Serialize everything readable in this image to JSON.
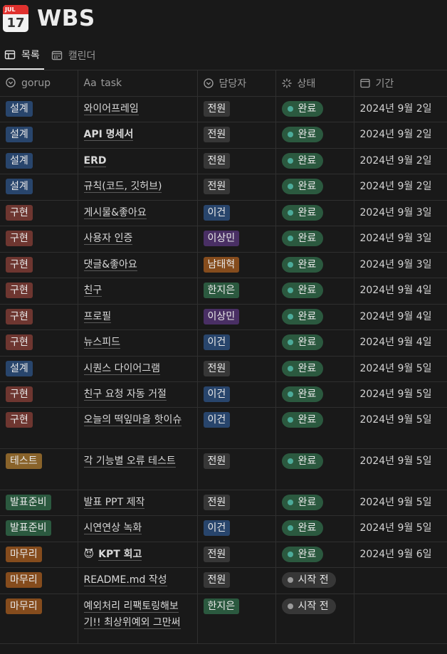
{
  "page": {
    "icon_month": "JUL",
    "icon_day": "17",
    "title": "WBS"
  },
  "tabs": [
    {
      "label": "목록",
      "icon": "table-icon",
      "active": true
    },
    {
      "label": "캘린더",
      "icon": "calendar-icon",
      "active": false
    }
  ],
  "columns": [
    {
      "label": "gorup",
      "icon": "select-icon"
    },
    {
      "label": "task",
      "icon": "text-aa-icon",
      "prefix": "Aa"
    },
    {
      "label": "담당자",
      "icon": "select-icon"
    },
    {
      "label": "상태",
      "icon": "status-spinner-icon"
    },
    {
      "label": "기간",
      "icon": "calendar-icon"
    }
  ],
  "colors": {
    "설계": "#28456c",
    "구현": "#6e3630",
    "테스트": "#89632a",
    "발표준비": "#2b593f",
    "마무리": "#854c1d",
    "전원": "#373737",
    "이건": "#28456c",
    "이상민": "#492f64",
    "남태혁": "#854c1d",
    "한지은": "#2b593f",
    "완료_bg": "#2b593f",
    "완료_dot": "#4dab9a",
    "시작전_bg": "#373737",
    "시작전_dot": "#9b9b9b"
  },
  "rows": [
    {
      "group": "설계",
      "task": "와이어프레임",
      "assignee": "전원",
      "status": "완료",
      "date": "2024년 9월 2일"
    },
    {
      "group": "설계",
      "task": "API 명세서",
      "assignee": "전원",
      "status": "완료",
      "date": "2024년 9월 2일",
      "bold": true
    },
    {
      "group": "설계",
      "task": "ERD",
      "assignee": "전원",
      "status": "완료",
      "date": "2024년 9월 2일",
      "bold": true
    },
    {
      "group": "설계",
      "task": "규칙(코드, 깃허브)",
      "assignee": "전원",
      "status": "완료",
      "date": "2024년 9월 2일"
    },
    {
      "group": "구현",
      "task": "게시물&좋아요",
      "assignee": "이건",
      "status": "완료",
      "date": "2024년 9월 3일"
    },
    {
      "group": "구현",
      "task": "사용자 인증",
      "assignee": "이상민",
      "status": "완료",
      "date": "2024년 9월 3일"
    },
    {
      "group": "구현",
      "task": "댓글&좋아요",
      "assignee": "남태혁",
      "status": "완료",
      "date": "2024년 9월 3일"
    },
    {
      "group": "구현",
      "task": "친구",
      "assignee": "한지은",
      "status": "완료",
      "date": "2024년 9월 4일"
    },
    {
      "group": "구현",
      "task": "프로필",
      "assignee": "이상민",
      "status": "완료",
      "date": "2024년 9월 4일"
    },
    {
      "group": "구현",
      "task": "뉴스피드",
      "assignee": "이건",
      "status": "완료",
      "date": "2024년 9월 4일"
    },
    {
      "group": "설계",
      "task": "시퀀스 다이어그램",
      "assignee": "전원",
      "status": "완료",
      "date": "2024년 9월 5일"
    },
    {
      "group": "구현",
      "task": "친구 요청 자동 거절",
      "assignee": "이건",
      "status": "완료",
      "date": "2024년 9월 5일"
    },
    {
      "group": "구현",
      "task": "오늘의 떡잎마을 핫이슈",
      "assignee": "이건",
      "status": "완료",
      "date": "2024년 9월 5일"
    },
    {
      "group": "테스트",
      "task": "각 기능별 오류 테스트",
      "assignee": "전원",
      "status": "완료",
      "date": "2024년 9월 5일"
    },
    {
      "group": "발표준비",
      "task": "발표 PPT 제작",
      "assignee": "전원",
      "status": "완료",
      "date": "2024년 9월 5일",
      "bold_part": "PPT"
    },
    {
      "group": "발표준비",
      "task": "시연연상 녹화",
      "assignee": "이건",
      "status": "완료",
      "date": "2024년 9월 5일"
    },
    {
      "group": "마무리",
      "task": "KPT 회고",
      "assignee": "전원",
      "status": "완료",
      "date": "2024년 9월 6일",
      "emoji": "😈",
      "bold": true
    },
    {
      "group": "마무리",
      "task": "README.md 작성",
      "assignee": "전원",
      "status": "시작 전",
      "date": ""
    },
    {
      "group": "마무리",
      "task": "예외처리 리팩토링해보기!! 최상위예외 그만써",
      "assignee": "한지은",
      "status": "시작 전",
      "date": ""
    }
  ]
}
